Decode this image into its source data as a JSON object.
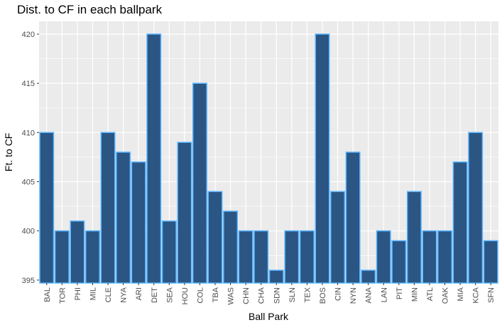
{
  "chart_data": {
    "type": "bar",
    "title": "Dist. to CF in each ballpark",
    "xlabel": "Ball Park",
    "ylabel": "Ft. to CF",
    "categories": [
      "BAL",
      "TOR",
      "PHI",
      "MIL",
      "CLE",
      "NYA",
      "ARI",
      "DET",
      "SEA",
      "HOU",
      "COL",
      "TBA",
      "WAS",
      "CHN",
      "CHA",
      "SDN",
      "SLN",
      "TEX",
      "BOS",
      "CIN",
      "NYN",
      "ANA",
      "LAN",
      "PIT",
      "MIN",
      "ATL",
      "OAK",
      "MIA",
      "KCA",
      "SFN"
    ],
    "values": [
      410,
      400,
      401,
      400,
      410,
      408,
      407,
      420,
      401,
      409,
      415,
      404,
      402,
      400,
      400,
      396,
      400,
      400,
      420,
      404,
      408,
      396,
      400,
      399,
      404,
      400,
      400,
      407,
      410,
      399
    ],
    "ylim": [
      394.7,
      421.3
    ],
    "yticks": [
      395,
      400,
      405,
      410,
      415,
      420
    ],
    "grid": true,
    "colors": {
      "bar_fill": "#2b5583",
      "bar_stroke": "#56b4ff",
      "panel_bg": "#ebebeb",
      "grid": "#ffffff"
    }
  }
}
